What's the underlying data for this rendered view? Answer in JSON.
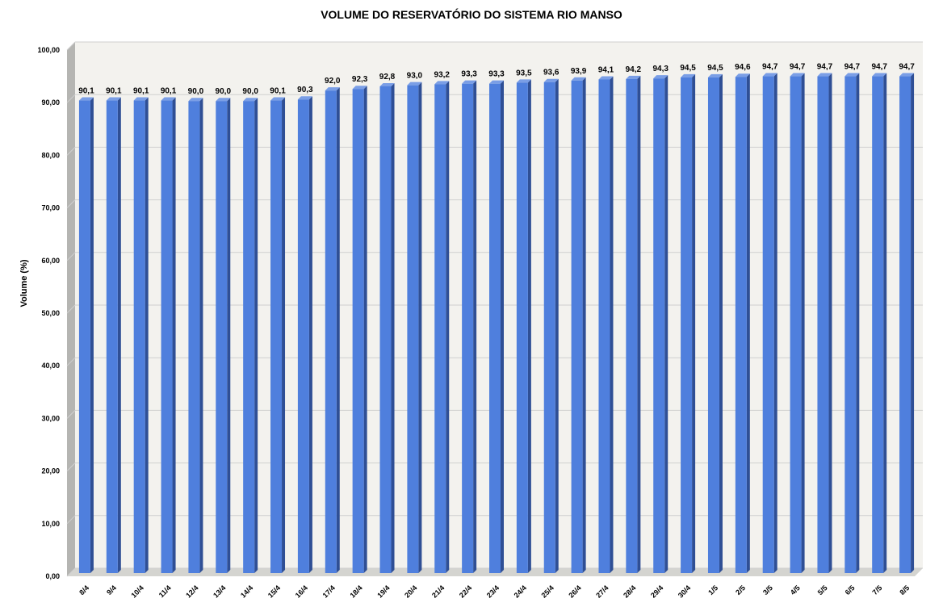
{
  "chart_data": {
    "type": "bar",
    "title": "VOLUME DO RESERVATÓRIO DO SISTEMA RIO MANSO",
    "xlabel": "",
    "ylabel": "Volume (%)",
    "ylim": [
      0,
      100
    ],
    "y_ticks": [
      "0,00",
      "10,00",
      "20,00",
      "30,00",
      "40,00",
      "50,00",
      "60,00",
      "70,00",
      "80,00",
      "90,00",
      "100,00"
    ],
    "grid": true,
    "style": "3d-column",
    "categories": [
      "8/4",
      "9/4",
      "10/4",
      "11/4",
      "12/4",
      "13/4",
      "14/4",
      "15/4",
      "16/4",
      "17/4",
      "18/4",
      "19/4",
      "20/4",
      "21/4",
      "22/4",
      "23/4",
      "24/4",
      "25/4",
      "26/4",
      "27/4",
      "28/4",
      "29/4",
      "30/4",
      "1/5",
      "2/5",
      "3/5",
      "4/5",
      "5/5",
      "6/5",
      "7/5",
      "8/5"
    ],
    "values": [
      90.1,
      90.1,
      90.1,
      90.1,
      90.0,
      90.0,
      90.0,
      90.1,
      90.3,
      92.0,
      92.3,
      92.8,
      93.0,
      93.2,
      93.3,
      93.3,
      93.5,
      93.6,
      93.9,
      94.1,
      94.2,
      94.3,
      94.5,
      94.5,
      94.6,
      94.7,
      94.7,
      94.7,
      94.7,
      94.7,
      94.7
    ],
    "data_labels": [
      "90,1",
      "90,1",
      "90,1",
      "90,1",
      "90,0",
      "90,0",
      "90,0",
      "90,1",
      "90,3",
      "92,0",
      "92,3",
      "92,8",
      "93,0",
      "93,2",
      "93,3",
      "93,3",
      "93,5",
      "93,6",
      "93,9",
      "94,1",
      "94,2",
      "94,3",
      "94,5",
      "94,5",
      "94,6",
      "94,7",
      "94,7",
      "94,7",
      "94,7",
      "94,7",
      "94,7"
    ],
    "colors": {
      "bar_front": "#4f7fdd",
      "bar_side": "#2f4f95",
      "bar_top": "#7a9ee6",
      "wall": "#f3f2ee",
      "side_wall": "#b5b5b2",
      "floor": "#d4d4d0",
      "grid": "#cfcfcf"
    }
  }
}
